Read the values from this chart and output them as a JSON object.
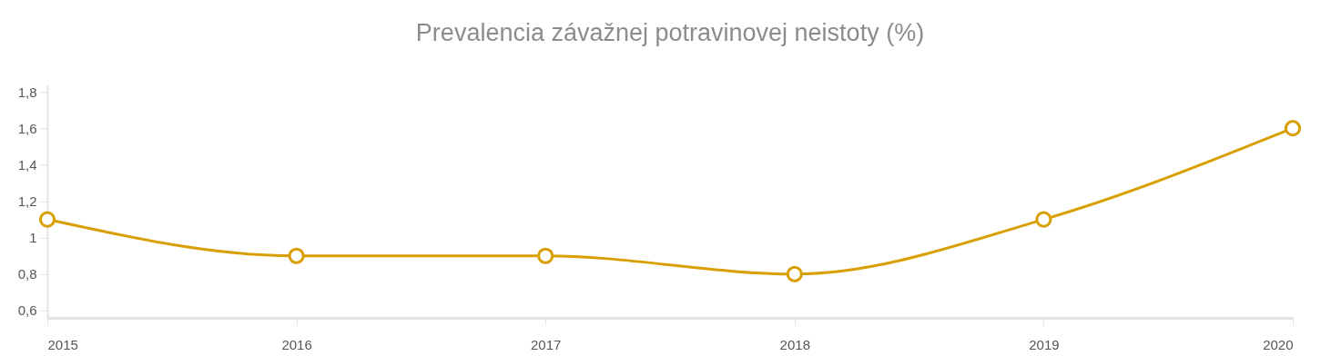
{
  "chart_data": {
    "type": "line",
    "title": "Prevalencia závažnej potravinovej neistoty (%)",
    "categories": [
      "2015",
      "2016",
      "2017",
      "2018",
      "2019",
      "2020"
    ],
    "series": [
      {
        "color": "#d99e00",
        "values": [
          1.1,
          0.9,
          0.9,
          0.8,
          1.1,
          1.6
        ]
      }
    ],
    "ylim": [
      0.56,
      1.84
    ],
    "yticks": [
      {
        "value": 0.6,
        "label": "0,6"
      },
      {
        "value": 0.8,
        "label": "0,8"
      },
      1,
      {
        "value": 1.2,
        "label": "1,2"
      },
      {
        "value": 1.4,
        "label": "1,4"
      },
      {
        "value": 1.6,
        "label": "1,6"
      },
      {
        "value": 1.8,
        "label": "1,8"
      }
    ],
    "marker": "circle",
    "grid": false,
    "legend": false
  }
}
